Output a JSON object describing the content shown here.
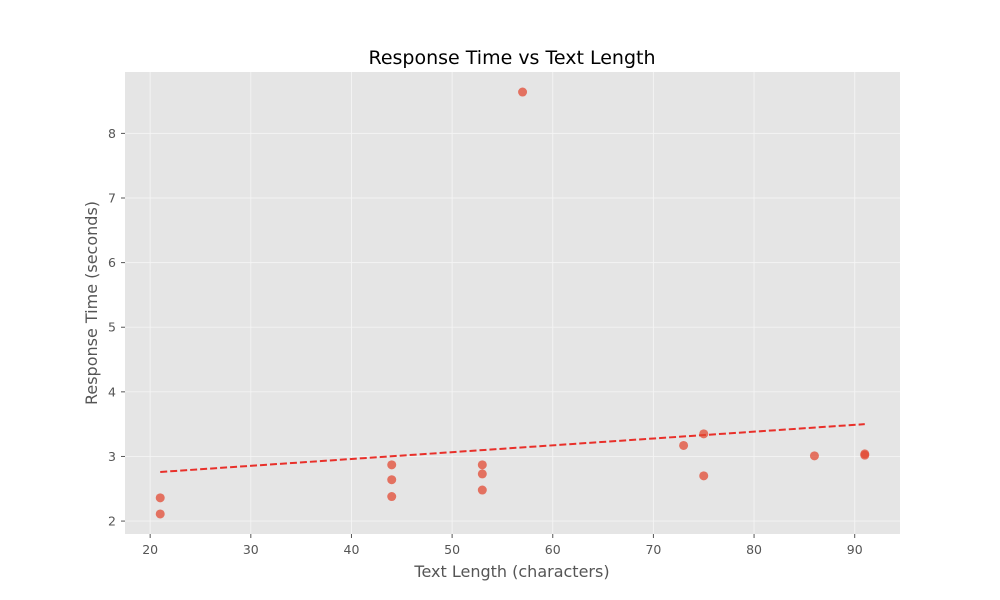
{
  "chart_data": {
    "type": "scatter",
    "title": "Response Time vs Text Length",
    "xlabel": "Text Length (characters)",
    "ylabel": "Response Time (seconds)",
    "xlim": [
      17.5,
      94.5
    ],
    "ylim": [
      1.8,
      8.95
    ],
    "xticks": [
      20,
      30,
      40,
      50,
      60,
      70,
      80,
      90
    ],
    "yticks": [
      2,
      3,
      4,
      5,
      6,
      7,
      8
    ],
    "grid": true,
    "colors": {
      "background": "#E5E5E5",
      "grid": "#F4F4F4",
      "points": "#E24A33",
      "trendline": "#E8302A"
    },
    "series": [
      {
        "points": [
          {
            "x": 21,
            "y": 2.36
          },
          {
            "x": 21,
            "y": 2.11
          },
          {
            "x": 44,
            "y": 2.87
          },
          {
            "x": 44,
            "y": 2.64
          },
          {
            "x": 44,
            "y": 2.38
          },
          {
            "x": 53,
            "y": 2.87
          },
          {
            "x": 53,
            "y": 2.73
          },
          {
            "x": 53,
            "y": 2.48
          },
          {
            "x": 57,
            "y": 8.64
          },
          {
            "x": 73,
            "y": 3.17
          },
          {
            "x": 75,
            "y": 3.35
          },
          {
            "x": 75,
            "y": 2.7
          },
          {
            "x": 86,
            "y": 3.01
          },
          {
            "x": 91,
            "y": 3.04
          },
          {
            "x": 91,
            "y": 3.02
          }
        ]
      }
    ],
    "trendline": {
      "style": "dashed",
      "start": {
        "x": 21,
        "y": 2.76
      },
      "end": {
        "x": 91,
        "y": 3.5
      }
    }
  }
}
